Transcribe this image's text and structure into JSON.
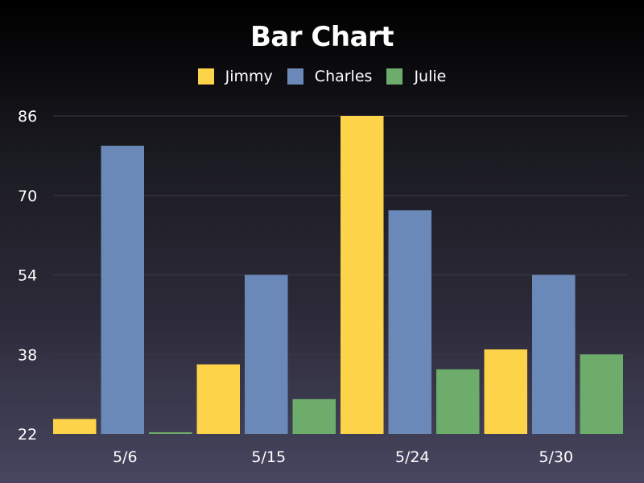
{
  "chart_data": {
    "type": "bar",
    "title": "Bar Chart",
    "xlabel": "",
    "ylabel": "",
    "categories": [
      "5/6",
      "5/15",
      "5/24",
      "5/30"
    ],
    "series": [
      {
        "name": "Jimmy",
        "color": "#fdd34a",
        "values": [
          25,
          36,
          86,
          39
        ]
      },
      {
        "name": "Charles",
        "color": "#6b89b8",
        "values": [
          80,
          54,
          67,
          54
        ]
      },
      {
        "name": "Julie",
        "color": "#6dac6a",
        "values": [
          22,
          29,
          35,
          38
        ]
      }
    ],
    "yticks": [
      22,
      38,
      54,
      70,
      86
    ],
    "ylim": [
      22,
      86
    ],
    "grid": true,
    "legend_position": "top-center"
  }
}
